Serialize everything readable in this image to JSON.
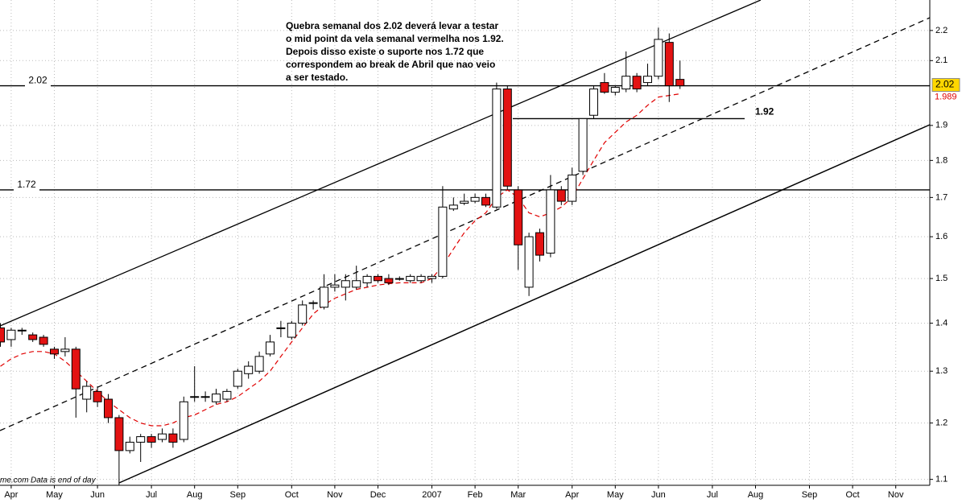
{
  "chart_data": {
    "type": "candlestick",
    "categories": [
      null,
      "Apr",
      null,
      null,
      null,
      "May",
      null,
      null,
      null,
      "Jun",
      null,
      null,
      null,
      null,
      "Jul",
      null,
      null,
      null,
      "Aug",
      null,
      null,
      null,
      "Sep",
      null,
      null,
      null,
      null,
      "Oct",
      null,
      null,
      null,
      "Nov",
      null,
      null,
      null,
      "Dec",
      null,
      null,
      null,
      null,
      "2007",
      null,
      null,
      null,
      "Feb",
      null,
      null,
      null,
      "Mar",
      null,
      null,
      null,
      null,
      "Apr",
      null,
      null,
      null,
      "May",
      null,
      null,
      null,
      "Jun",
      null,
      null,
      null,
      null,
      "Jul",
      null,
      null,
      null,
      "Aug",
      null,
      null,
      null,
      null,
      "Sep",
      null,
      null,
      null,
      "Oct",
      null,
      null,
      null,
      "Nov",
      null,
      null
    ],
    "open": [
      1.39,
      1.365,
      1.385,
      1.375,
      1.37,
      1.345,
      1.34,
      1.345,
      1.245,
      1.26,
      1.245,
      1.21,
      1.15,
      1.165,
      1.175,
      1.17,
      1.18,
      1.17,
      1.25,
      1.25,
      1.24,
      1.245,
      1.27,
      1.295,
      1.3,
      1.335,
      1.39,
      1.37,
      1.4,
      1.445,
      1.435,
      1.48,
      1.48,
      1.48,
      1.49,
      1.505,
      1.5,
      1.5,
      1.495,
      1.495,
      1.5,
      1.505,
      1.67,
      1.685,
      1.69,
      1.7,
      1.675,
      2.01,
      1.72,
      1.48,
      1.61,
      1.56,
      1.72,
      1.69,
      1.77,
      1.93,
      2.03,
      2.0,
      2.01,
      2.05,
      2.03,
      2.05,
      2.16,
      2.04,
      null,
      null,
      null,
      null,
      null,
      null,
      null,
      null,
      null,
      null,
      null,
      null,
      null,
      null,
      null,
      null,
      null,
      null,
      null,
      null,
      null,
      null
    ],
    "high": [
      1.4,
      1.39,
      1.39,
      1.38,
      1.375,
      1.35,
      1.37,
      1.35,
      1.28,
      1.27,
      1.255,
      1.215,
      1.175,
      1.18,
      1.18,
      1.19,
      1.19,
      1.25,
      1.31,
      1.26,
      1.265,
      1.265,
      1.305,
      1.32,
      1.34,
      1.375,
      1.405,
      1.405,
      1.45,
      1.45,
      1.51,
      1.51,
      1.51,
      1.53,
      1.51,
      1.51,
      1.51,
      1.505,
      1.51,
      1.51,
      1.51,
      1.73,
      1.7,
      1.71,
      1.71,
      1.71,
      2.03,
      2.02,
      1.73,
      1.61,
      1.62,
      1.76,
      1.73,
      1.78,
      1.92,
      2.02,
      2.06,
      2.02,
      2.13,
      2.06,
      2.09,
      2.21,
      2.19,
      2.1,
      null,
      null,
      null,
      null,
      null,
      null,
      null,
      null,
      null,
      null,
      null,
      null,
      null,
      null,
      null,
      null,
      null,
      null,
      null,
      null,
      null,
      null
    ],
    "low": [
      1.35,
      1.35,
      1.375,
      1.36,
      1.35,
      1.325,
      1.33,
      1.21,
      1.22,
      1.23,
      1.2,
      1.09,
      1.145,
      1.13,
      1.155,
      1.165,
      1.155,
      1.165,
      1.24,
      1.24,
      1.235,
      1.24,
      1.265,
      1.285,
      1.295,
      1.33,
      1.37,
      1.365,
      1.395,
      1.43,
      1.43,
      1.47,
      1.45,
      1.475,
      1.48,
      1.49,
      1.485,
      1.495,
      1.49,
      1.49,
      1.49,
      1.5,
      1.665,
      1.68,
      1.685,
      1.675,
      1.67,
      1.72,
      1.52,
      1.46,
      1.54,
      1.55,
      1.68,
      1.68,
      1.76,
      1.92,
      1.995,
      1.99,
      2.0,
      2.0,
      2.02,
      2.04,
      1.97,
      2.01,
      null,
      null,
      null,
      null,
      null,
      null,
      null,
      null,
      null,
      null,
      null,
      null,
      null,
      null,
      null,
      null,
      null,
      null,
      null,
      null,
      null,
      null
    ],
    "close": [
      1.36,
      1.385,
      1.385,
      1.365,
      1.355,
      1.335,
      1.345,
      1.265,
      1.27,
      1.24,
      1.21,
      1.15,
      1.165,
      1.175,
      1.165,
      1.18,
      1.165,
      1.24,
      1.25,
      1.25,
      1.255,
      1.26,
      1.3,
      1.31,
      1.33,
      1.36,
      1.39,
      1.4,
      1.44,
      1.445,
      1.48,
      1.485,
      1.495,
      1.495,
      1.505,
      1.495,
      1.49,
      1.5,
      1.505,
      1.505,
      1.505,
      1.675,
      1.68,
      1.69,
      1.7,
      1.68,
      2.01,
      1.73,
      1.58,
      1.6,
      1.555,
      1.72,
      1.69,
      1.76,
      1.92,
      2.01,
      2.0,
      2.015,
      2.05,
      2.01,
      2.05,
      2.17,
      2.02,
      2.02,
      null,
      null,
      null,
      null,
      null,
      null,
      null,
      null,
      null,
      null,
      null,
      null,
      null,
      null,
      null,
      null,
      null,
      null,
      null,
      null,
      null,
      null
    ],
    "up_color": "#ffffff",
    "down_color": "#e31212",
    "ma": {
      "color": "#e00000",
      "values": [
        1.31,
        1.325,
        1.335,
        1.34,
        1.34,
        1.335,
        1.32,
        1.3,
        1.28,
        1.26,
        1.24,
        1.225,
        1.21,
        1.2,
        1.195,
        1.195,
        1.2,
        1.21,
        1.215,
        1.225,
        1.235,
        1.24,
        1.25,
        1.265,
        1.28,
        1.3,
        1.33,
        1.36,
        1.39,
        1.42,
        1.44,
        1.455,
        1.465,
        1.475,
        1.48,
        1.485,
        1.488,
        1.49,
        1.49,
        1.49,
        1.5,
        1.53,
        1.57,
        1.61,
        1.64,
        1.66,
        1.7,
        1.72,
        1.7,
        1.66,
        1.65,
        1.66,
        1.675,
        1.7,
        1.75,
        1.8,
        1.85,
        1.88,
        1.91,
        1.93,
        1.96,
        1.985,
        1.99,
        1.995,
        null,
        null,
        null,
        null,
        null,
        null,
        null,
        null,
        null,
        null,
        null,
        null,
        null,
        null,
        null,
        null,
        null,
        null,
        null,
        null,
        null,
        null
      ]
    },
    "ylim": [
      1.09,
      2.306
    ],
    "yticks": [
      1.1,
      1.2,
      1.3,
      1.4,
      1.5,
      1.6,
      1.7,
      1.8,
      1.9,
      2.1,
      2.2
    ],
    "log_scale": true,
    "grid": true,
    "levels": [
      2.02,
      1.72,
      1.92
    ],
    "last_price": 2.02,
    "ma_last": 1.989,
    "annotation": [
      "Quebra semanal dos 2.02 deverá levar a testar",
      "o mid point da vela semanal vermelha nos 1.92.",
      "Depois disso existe o suporte nos 1.72 que",
      "correspondem ao break de Abril que nao veio",
      "a ser testado."
    ],
    "source": "me.com",
    "note": "Data is end of day"
  }
}
